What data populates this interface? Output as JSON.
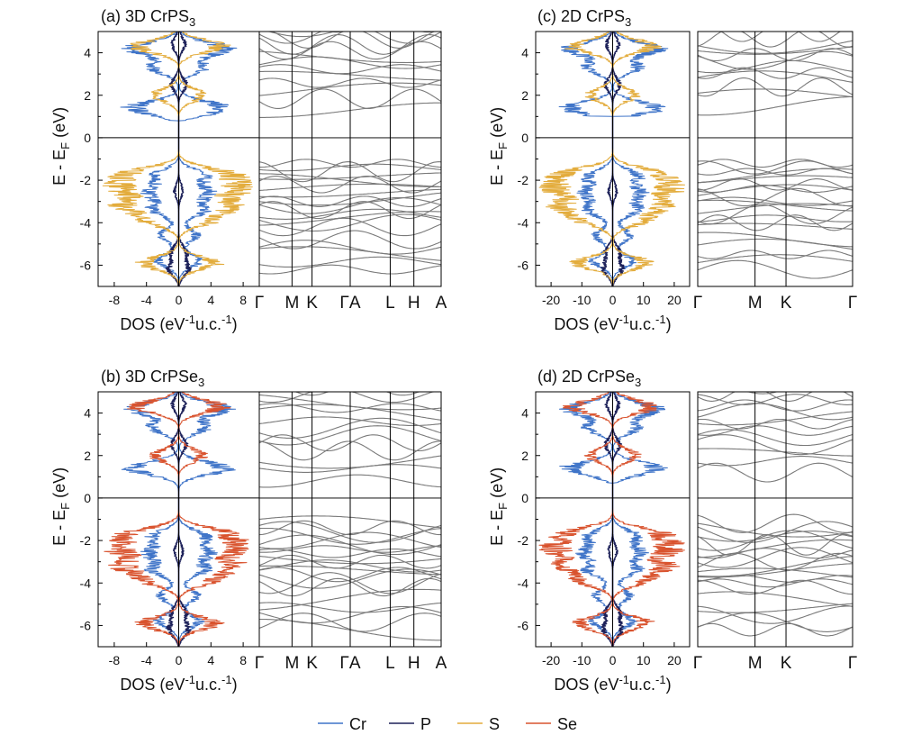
{
  "colors": {
    "Cr": "#3f74c8",
    "P": "#1d2159",
    "S": "#e3ac3c",
    "Se": "#d9532e",
    "band": "#7a7a7a"
  },
  "legend": [
    {
      "name": "Cr",
      "label": "Cr",
      "color": "#3f74c8"
    },
    {
      "name": "P",
      "label": "P",
      "color": "#1d2159"
    },
    {
      "name": "S",
      "label": "S",
      "color": "#e3ac3c"
    },
    {
      "name": "Se",
      "label": "Se",
      "color": "#d9532e"
    }
  ],
  "chart_data": [
    {
      "type": "line",
      "id": "a",
      "title": {
        "prefix": "(a) 3D CrPS",
        "sub": "3"
      },
      "ylabel": {
        "main": "E - E",
        "sub": "F",
        "unit": " (eV)"
      },
      "xlabel": {
        "a": "DOS (eV",
        "b": "-1",
        "c": "u.c.",
        "d": "-1",
        "e": ")"
      },
      "ylim": [
        -7,
        5
      ],
      "yticks": [
        -6,
        -4,
        -2,
        0,
        2,
        4
      ],
      "dos_xlim": [
        -10,
        10
      ],
      "dos_xticks": [
        -8,
        -4,
        0,
        4,
        8
      ],
      "species": [
        "Cr",
        "P",
        "S"
      ],
      "dominant": "S",
      "kpoints": [
        "Γ",
        "M",
        "K",
        "ΓA",
        "L",
        "H",
        "A"
      ],
      "kpos": [
        0,
        0.18,
        0.29,
        0.5,
        0.72,
        0.85,
        1.0
      ],
      "gap": [
        -0.1,
        1.1
      ]
    },
    {
      "type": "line",
      "id": "b",
      "title": {
        "prefix": "(b) 3D CrPSe",
        "sub": "3"
      },
      "ylabel": {
        "main": "E - E",
        "sub": "F",
        "unit": " (eV)"
      },
      "xlabel": {
        "a": "DOS (eV",
        "b": "-1",
        "c": "u.c.",
        "d": "-1",
        "e": ")"
      },
      "ylim": [
        -7,
        5
      ],
      "yticks": [
        -6,
        -4,
        -2,
        0,
        2,
        4
      ],
      "dos_xlim": [
        -10,
        10
      ],
      "dos_xticks": [
        -8,
        -4,
        0,
        4,
        8
      ],
      "species": [
        "Cr",
        "P",
        "Se"
      ],
      "dominant": "Se",
      "kpoints": [
        "Γ",
        "M",
        "K",
        "ΓA",
        "L",
        "H",
        "A"
      ],
      "kpos": [
        0,
        0.18,
        0.29,
        0.5,
        0.72,
        0.85,
        1.0
      ],
      "gap": [
        -0.5,
        0.6
      ]
    },
    {
      "type": "line",
      "id": "c",
      "title": {
        "prefix": "(c) 2D CrPS",
        "sub": "3"
      },
      "ylabel": {
        "main": "E - E",
        "sub": "F",
        "unit": " (eV)"
      },
      "xlabel": {
        "a": "DOS (eV",
        "b": "-1",
        "c": "u.c.",
        "d": "-1",
        "e": ")"
      },
      "ylim": [
        -7,
        5
      ],
      "yticks": [
        -6,
        -4,
        -2,
        0,
        2,
        4
      ],
      "dos_xlim": [
        -25,
        25
      ],
      "dos_xticks": [
        -20,
        -10,
        0,
        10,
        20
      ],
      "species": [
        "Cr",
        "P",
        "S"
      ],
      "dominant": "S",
      "kpoints": [
        "Γ",
        "M",
        "K",
        "Γ"
      ],
      "kpos": [
        0,
        0.37,
        0.57,
        1.0
      ],
      "gap": [
        -0.1,
        1.3
      ]
    },
    {
      "type": "line",
      "id": "d",
      "title": {
        "prefix": "(d) 2D CrPSe",
        "sub": "3"
      },
      "ylabel": {
        "main": "E - E",
        "sub": "F",
        "unit": " (eV)"
      },
      "xlabel": {
        "a": "DOS (eV",
        "b": "-1",
        "c": "u.c.",
        "d": "-1",
        "e": ")"
      },
      "ylim": [
        -7,
        5
      ],
      "yticks": [
        -6,
        -4,
        -2,
        0,
        2,
        4
      ],
      "dos_xlim": [
        -25,
        25
      ],
      "dos_xticks": [
        -20,
        -10,
        0,
        10,
        20
      ],
      "species": [
        "Cr",
        "P",
        "Se"
      ],
      "dominant": "Se",
      "kpoints": [
        "Γ",
        "M",
        "K",
        "Γ"
      ],
      "kpos": [
        0,
        0.37,
        0.57,
        1.0
      ],
      "gap": [
        -0.1,
        1.0
      ]
    }
  ]
}
